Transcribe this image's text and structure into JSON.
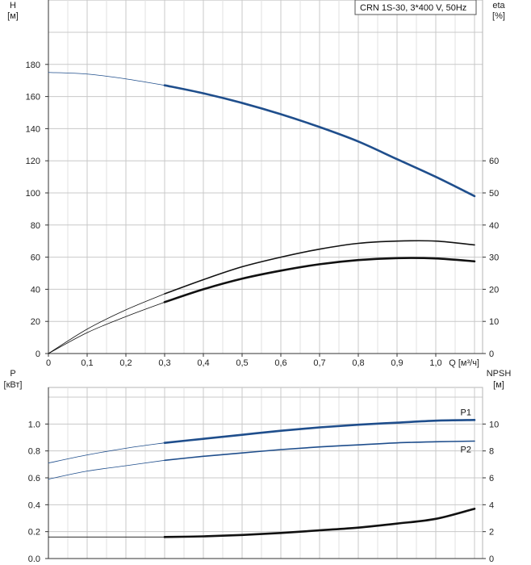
{
  "chart_data": [
    {
      "type": "line",
      "name": "performance",
      "model_label": "CRN 1S-30, 3*400 V, 50Hz",
      "x_ticks": [
        "0",
        "0,1",
        "0,2",
        "0,3",
        "0,4",
        "0,5",
        "0,6",
        "0,7",
        "0,8",
        "0,9",
        "1,0"
      ],
      "x_unit": "Q [м³/ч]",
      "xlim": [
        0,
        1.1
      ],
      "y_left": {
        "label": "H",
        "unit": "[м]",
        "ylim": [
          0,
          200
        ],
        "ticks": [
          "0",
          "20",
          "40",
          "60",
          "80",
          "100",
          "120",
          "140",
          "160",
          "180"
        ]
      },
      "y_right": {
        "label": "eta",
        "unit": "[%]",
        "ylim": [
          0,
          100
        ],
        "ticks": [
          "0",
          "10",
          "20",
          "30",
          "40",
          "50",
          "60"
        ]
      },
      "grid": true,
      "series": [
        {
          "color": "#1f4e8c",
          "axis": "left",
          "x": [
            0,
            0.1,
            0.2,
            0.3
          ],
          "y": [
            175,
            174,
            171,
            167
          ],
          "style": "thin"
        },
        {
          "color": "#1f4e8c",
          "axis": "left",
          "x": [
            0.3,
            0.4,
            0.5,
            0.6,
            0.7,
            0.8,
            0.9,
            1.0,
            1.1
          ],
          "y": [
            167,
            162,
            156,
            149,
            141,
            132,
            121,
            110,
            98
          ],
          "style": "thick"
        },
        {
          "color": "#111111",
          "axis": "right",
          "x": [
            0,
            0.1,
            0.2,
            0.3
          ],
          "y": [
            0,
            7.6,
            13.6,
            18.6
          ],
          "style": "thin"
        },
        {
          "color": "#111111",
          "axis": "right",
          "x": [
            0.3,
            0.4,
            0.5,
            0.6,
            0.7,
            0.8,
            0.9,
            1.0,
            1.1
          ],
          "y": [
            18.6,
            23,
            27,
            30,
            32.5,
            34.3,
            35,
            35,
            33.8
          ],
          "style": "medium"
        },
        {
          "color": "#111111",
          "axis": "right",
          "x": [
            0,
            0.1,
            0.2,
            0.3
          ],
          "y": [
            0,
            6.5,
            11.5,
            16
          ],
          "style": "thin"
        },
        {
          "color": "#111111",
          "axis": "right",
          "x": [
            0.3,
            0.4,
            0.5,
            0.6,
            0.7,
            0.8,
            0.9,
            1.0,
            1.1
          ],
          "y": [
            16,
            20,
            23.3,
            25.8,
            27.8,
            29.1,
            29.7,
            29.6,
            28.7
          ],
          "style": "thick"
        }
      ]
    },
    {
      "type": "line",
      "name": "power",
      "x_ticks": [
        "0",
        "0,1",
        "0,2",
        "0,3",
        "0,4",
        "0,5",
        "0,6",
        "0,7",
        "0,8",
        "0,9",
        "1,0"
      ],
      "xlim": [
        0,
        1.1
      ],
      "y_left": {
        "label": "P",
        "unit": "[кВт]",
        "ylim": [
          0,
          1.2
        ],
        "ticks": [
          "0.0",
          "0.2",
          "0.4",
          "0.6",
          "0.8",
          "1.0"
        ]
      },
      "y_right": {
        "label": "NPSH",
        "unit": "[м]",
        "ylim": [
          0,
          12
        ],
        "ticks": [
          "0",
          "2",
          "4",
          "6",
          "8",
          "10"
        ]
      },
      "grid": true,
      "series": [
        {
          "name": "P1",
          "color": "#1f4e8c",
          "axis": "left",
          "x": [
            0,
            0.1,
            0.2,
            0.3
          ],
          "y": [
            0.71,
            0.77,
            0.82,
            0.86
          ],
          "style": "thin"
        },
        {
          "name": "P1",
          "color": "#1f4e8c",
          "axis": "left",
          "x": [
            0.3,
            0.4,
            0.5,
            0.6,
            0.7,
            0.8,
            0.9,
            1.0,
            1.1
          ],
          "y": [
            0.86,
            0.89,
            0.92,
            0.95,
            0.975,
            0.995,
            1.01,
            1.025,
            1.03
          ],
          "style": "thick"
        },
        {
          "name": "P2",
          "color": "#1f4e8c",
          "axis": "left",
          "x": [
            0,
            0.1,
            0.2,
            0.3
          ],
          "y": [
            0.59,
            0.65,
            0.69,
            0.73
          ],
          "style": "thin"
        },
        {
          "name": "P2",
          "color": "#1f4e8c",
          "axis": "left",
          "x": [
            0.3,
            0.4,
            0.5,
            0.6,
            0.7,
            0.8,
            0.9,
            1.0,
            1.1
          ],
          "y": [
            0.73,
            0.76,
            0.785,
            0.81,
            0.83,
            0.845,
            0.86,
            0.868,
            0.873
          ],
          "style": "medium"
        },
        {
          "color": "#111111",
          "axis": "right",
          "x": [
            0,
            0.1,
            0.2,
            0.3
          ],
          "y": [
            1.6,
            1.6,
            1.6,
            1.6
          ],
          "style": "thin"
        },
        {
          "color": "#111111",
          "axis": "right",
          "x": [
            0.3,
            0.4,
            0.5,
            0.6,
            0.7,
            0.8,
            0.9,
            1.0,
            1.1
          ],
          "y": [
            1.6,
            1.65,
            1.75,
            1.9,
            2.1,
            2.3,
            2.6,
            2.95,
            3.7
          ],
          "style": "thick"
        }
      ],
      "series_labels": [
        {
          "text": "P1",
          "x": 1.1,
          "y": 1.03
        },
        {
          "text": "P2",
          "x": 1.1,
          "y": 0.873
        }
      ]
    }
  ]
}
